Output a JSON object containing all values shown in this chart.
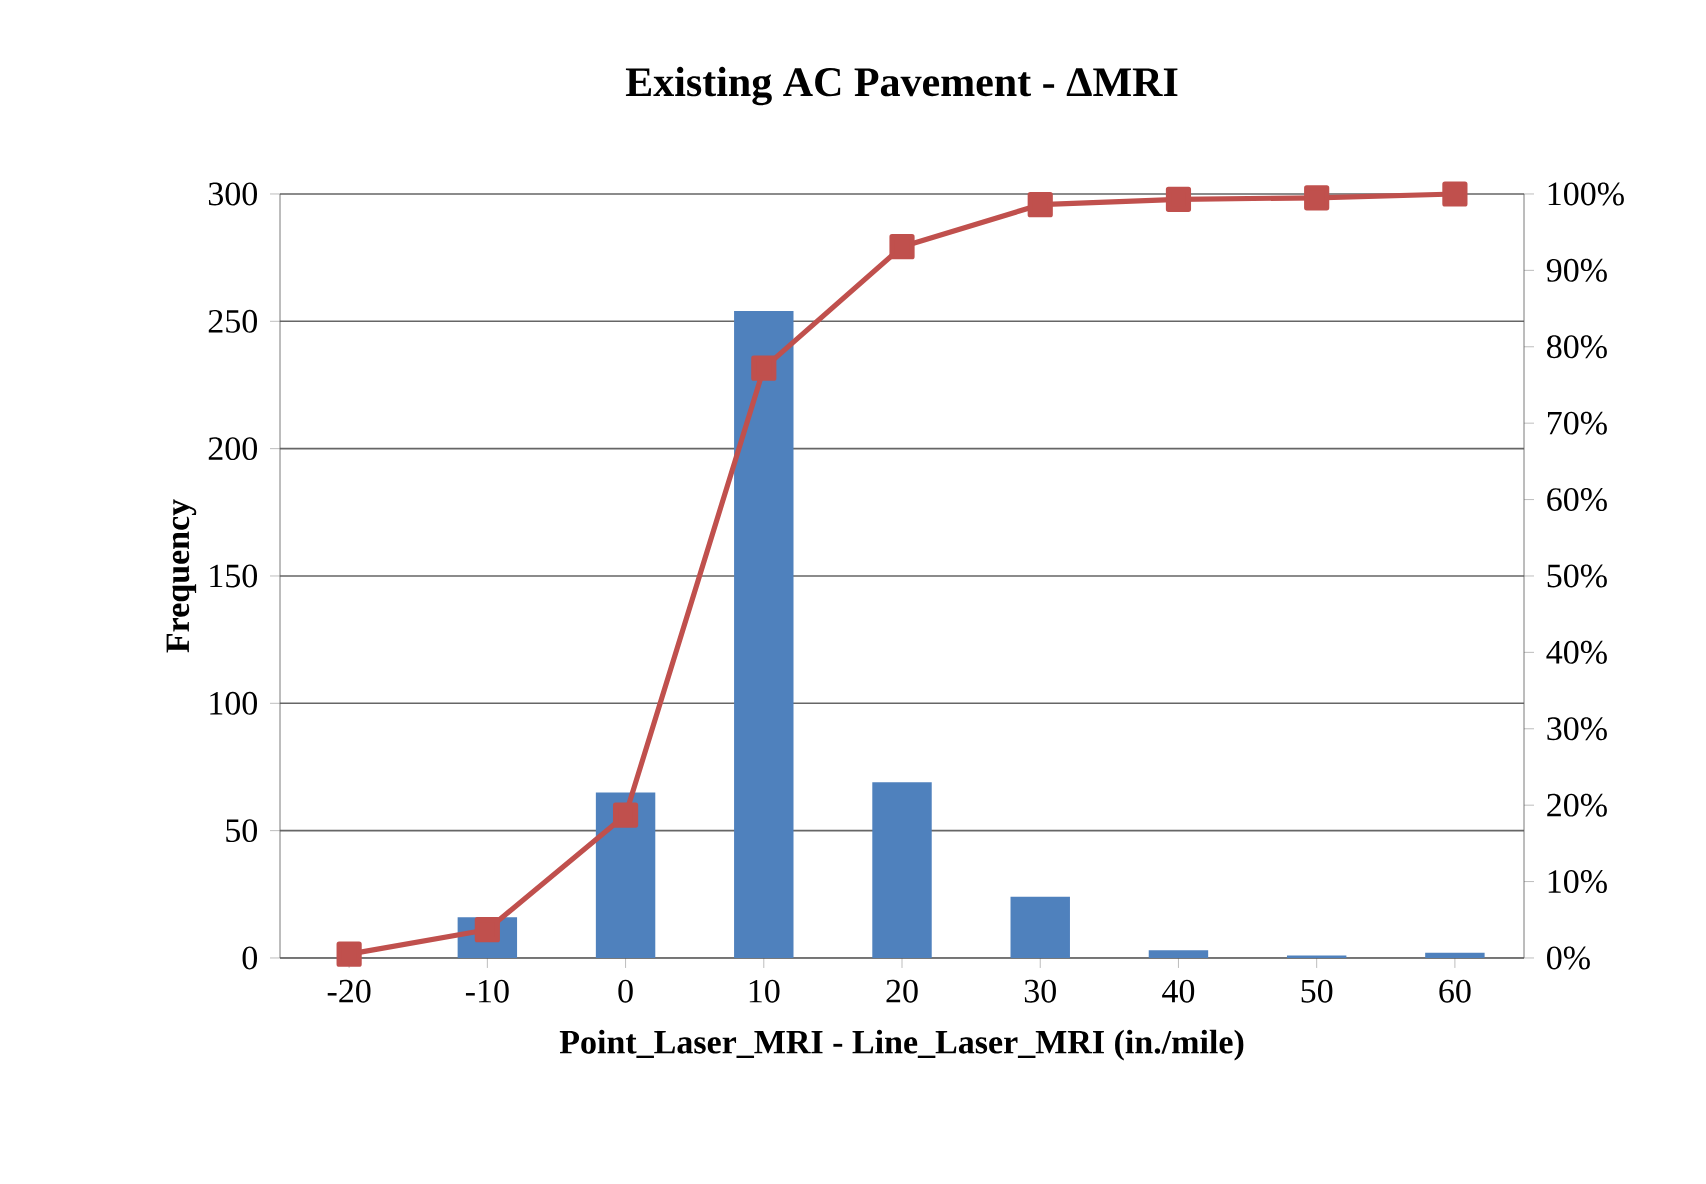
{
  "chart_data": {
    "type": "bar",
    "title": "Existing AC Pavement - ΔMRI",
    "xlabel": "Point_Laser_MRI - Line_Laser_MRI (in./mile)",
    "ylabel": "Frequency",
    "categories": [
      "-20",
      "-10",
      "0",
      "10",
      "20",
      "30",
      "40",
      "50",
      "60"
    ],
    "series": [
      {
        "color": "#4f81bd",
        "values": [
          0,
          16,
          65,
          254,
          69,
          24,
          3,
          1,
          2
        ]
      },
      {
        "type": "line",
        "axis": "y2",
        "color": "#c0504d",
        "marker": "square",
        "values": [
          0.5,
          3.7,
          18.7,
          77.2,
          93.1,
          98.6,
          99.3,
          99.5,
          100
        ]
      }
    ],
    "ylim": [
      0,
      300
    ],
    "yticks": [
      0,
      50,
      100,
      150,
      200,
      250,
      300
    ],
    "y2lim": [
      0,
      100
    ],
    "y2ticks": [
      {
        "value": 0,
        "label": "0%"
      },
      {
        "value": 10,
        "label": "10%"
      },
      {
        "value": 20,
        "label": "20%"
      },
      {
        "value": 30,
        "label": "30%"
      },
      {
        "value": 40,
        "label": "40%"
      },
      {
        "value": 50,
        "label": "50%"
      },
      {
        "value": 60,
        "label": "60%"
      },
      {
        "value": 70,
        "label": "70%"
      },
      {
        "value": 80,
        "label": "80%"
      },
      {
        "value": 90,
        "label": "90%"
      },
      {
        "value": 100,
        "label": "100%"
      }
    ],
    "grid": "y"
  }
}
